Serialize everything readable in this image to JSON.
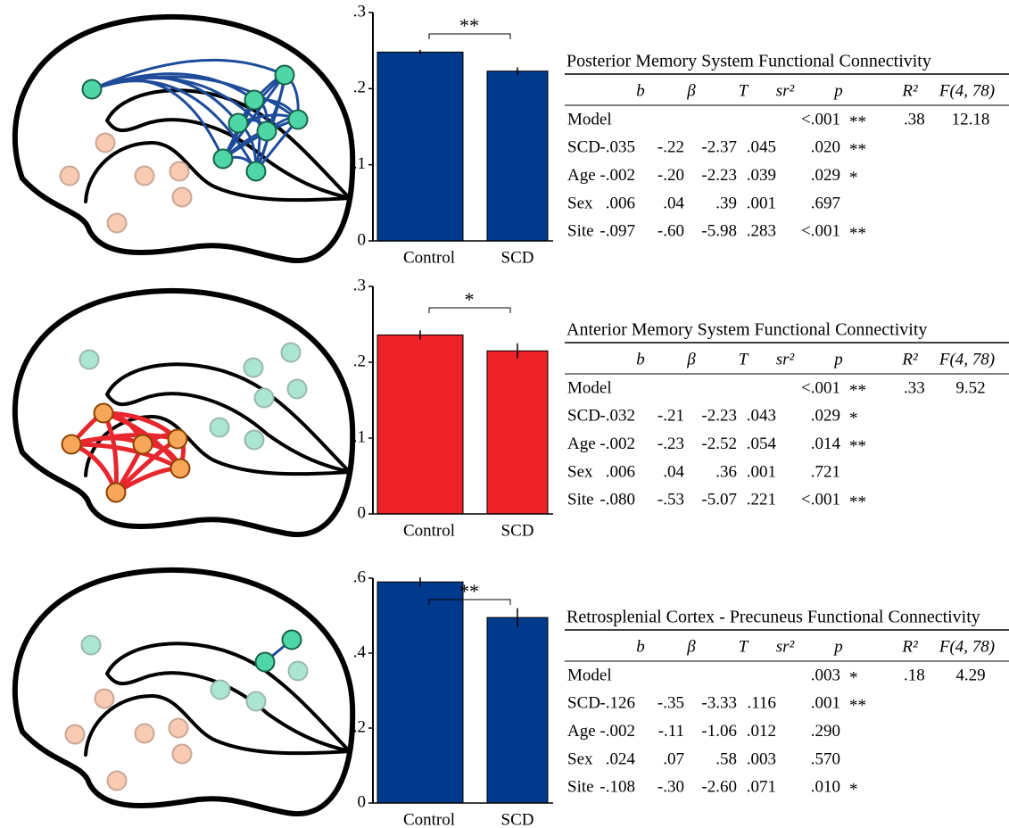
{
  "chart_data": [
    {
      "type": "bar",
      "categories": [
        "Control",
        "SCD"
      ],
      "values": [
        0.248,
        0.223
      ],
      "errors": [
        0.003,
        0.005
      ],
      "color": "#003a8c",
      "ylim": [
        0,
        0.3
      ],
      "yticks": [
        0,
        {
          "value": 0.1,
          "label": ".1"
        },
        {
          "value": 0.2,
          "label": ".2"
        },
        {
          "value": 0.3,
          "label": ".3"
        }
      ],
      "annotation": "**"
    },
    {
      "type": "bar",
      "categories": [
        "Control",
        "SCD"
      ],
      "values": [
        0.236,
        0.215
      ],
      "errors": [
        0.006,
        0.01
      ],
      "color": "#ee2229",
      "ylim": [
        0,
        0.3
      ],
      "yticks": [
        0,
        {
          "value": 0.1,
          "label": ".1"
        },
        {
          "value": 0.2,
          "label": ".2"
        },
        {
          "value": 0.3,
          "label": ".3"
        }
      ],
      "annotation": "*"
    },
    {
      "type": "bar",
      "categories": [
        "Control",
        "SCD"
      ],
      "values": [
        0.59,
        0.495
      ],
      "errors": [
        0.012,
        0.025
      ],
      "color": "#003a8c",
      "ylim": [
        0,
        0.6
      ],
      "yticks": [
        0,
        {
          "value": 0.2,
          "label": ".2"
        },
        {
          "value": 0.4,
          "label": ".4"
        },
        {
          "value": 0.6,
          "label": ".6"
        }
      ],
      "annotation": "**"
    }
  ],
  "tables": [
    {
      "title": "Posterior Memory System Functional Connectivity",
      "columns": [
        "b",
        "β",
        "T",
        "sr²",
        "p",
        "R²",
        "F(4, 78)"
      ],
      "model": {
        "label": "Model",
        "p": "<.001",
        "sig": "**",
        "r2": ".38",
        "f": "12.18"
      },
      "rows": [
        {
          "cells": [
            "SCD",
            "-.035",
            "-.22",
            "-2.37",
            ".045",
            ".020"
          ],
          "sig": "**"
        },
        {
          "cells": [
            "Age",
            "-.002",
            "-.20",
            "-2.23",
            ".039",
            ".029"
          ],
          "sig": "*"
        },
        {
          "cells": [
            "Sex",
            ".006",
            ".04",
            ".39",
            ".001",
            ".697"
          ]
        },
        {
          "cells": [
            "Site",
            "-.097",
            "-.60",
            "-5.98",
            ".283",
            "<.001"
          ],
          "sig": "**"
        }
      ]
    },
    {
      "title": "Anterior Memory System Functional Connectivity",
      "columns": [
        "b",
        "β",
        "T",
        "sr²",
        "p",
        "R²",
        "F(4, 78)"
      ],
      "model": {
        "label": "Model",
        "p": "<.001",
        "sig": "**",
        "r2": ".33",
        "f": "9.52"
      },
      "rows": [
        {
          "cells": [
            "SCD",
            "-.032",
            "-.21",
            "-2.23",
            ".043",
            ".029"
          ],
          "sig": "*"
        },
        {
          "cells": [
            "Age",
            "-.002",
            "-.23",
            "-2.52",
            ".054",
            ".014"
          ],
          "sig": "**"
        },
        {
          "cells": [
            "Sex",
            ".006",
            ".04",
            ".36",
            ".001",
            ".721"
          ]
        },
        {
          "cells": [
            "Site",
            "-.080",
            "-.53",
            "-5.07",
            ".221",
            "<.001"
          ],
          "sig": "**"
        }
      ]
    },
    {
      "title": "Retrosplenial Cortex - Precuneus Functional Connectivity",
      "columns": [
        "b",
        "β",
        "T",
        "sr²",
        "p",
        "R²",
        "F(4, 78)"
      ],
      "model": {
        "label": "Model",
        "p": ".003",
        "sig": "*",
        "r2": ".18",
        "f": "4.29"
      },
      "rows": [
        {
          "cells": [
            "SCD",
            "-.126",
            "-.35",
            "-3.33",
            ".116",
            ".001"
          ],
          "sig": "**"
        },
        {
          "cells": [
            "Age",
            "-.002",
            "-.11",
            "-1.06",
            ".012",
            ".290"
          ]
        },
        {
          "cells": [
            "Sex",
            ".024",
            ".07",
            ".58",
            ".003",
            ".570"
          ]
        },
        {
          "cells": [
            "Site",
            "-.108",
            "-.30",
            "-2.60",
            ".071",
            ".010"
          ],
          "sig": "*"
        }
      ]
    }
  ]
}
